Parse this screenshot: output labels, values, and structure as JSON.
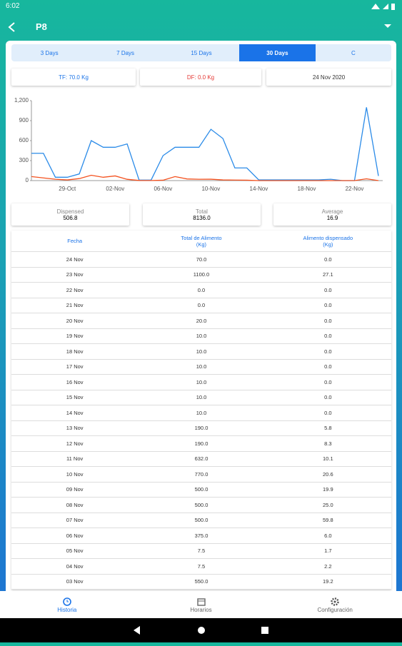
{
  "status_bar": {
    "time": "6:02"
  },
  "app_bar": {
    "title": "P8"
  },
  "tabs": [
    "3 Days",
    "7 Days",
    "15 Days",
    "30 Days",
    "C"
  ],
  "info": {
    "tf": "TF: 70.0 Kg",
    "df": "DF: 0.0 Kg",
    "date": "24 Nov 2020"
  },
  "chart_data": {
    "type": "line",
    "categories": [
      null,
      null,
      null,
      "29-Oct",
      null,
      null,
      null,
      "02-Nov",
      null,
      null,
      null,
      "06-Nov",
      null,
      null,
      null,
      "10-Nov",
      null,
      null,
      null,
      "14-Nov",
      null,
      null,
      null,
      "18-Nov",
      null,
      null,
      null,
      "22-Nov",
      null,
      null
    ],
    "series": [
      {
        "color": "#2b8be8",
        "values": [
          410,
          410,
          50,
          50,
          100,
          600,
          500,
          500,
          550,
          7.5,
          7.5,
          375,
          500,
          500,
          500,
          770,
          632,
          190,
          190,
          10,
          10,
          10,
          10,
          10,
          10,
          20,
          0,
          0,
          1100,
          70
        ]
      },
      {
        "color": "#f4511e",
        "values": [
          60,
          40,
          20,
          10,
          30,
          80,
          50,
          70,
          19.2,
          2.2,
          1.7,
          6.0,
          59.8,
          25.0,
          19.9,
          20.6,
          10.1,
          8.3,
          5.8,
          0,
          0,
          0,
          0,
          0,
          0,
          0,
          0,
          0,
          27.1,
          0
        ]
      }
    ],
    "ylim": [
      0,
      1200
    ],
    "yticks": [
      0,
      300,
      600,
      900,
      {
        "value": 1200,
        "label": "1,200"
      }
    ],
    "grid": false
  },
  "stats": [
    {
      "label": "Dispensed",
      "value": "506.8"
    },
    {
      "label": "Total",
      "value": "8136.0"
    },
    {
      "label": "Average",
      "value": "16.9"
    }
  ],
  "table": {
    "header": [
      "Fecha",
      "Total de Alimento\n(Kg)",
      "Alimento dispensado\n(Kg)"
    ],
    "rows": [
      [
        "24 Nov",
        "70.0",
        "0.0"
      ],
      [
        "23 Nov",
        "1100.0",
        "27.1"
      ],
      [
        "22 Nov",
        "0.0",
        "0.0"
      ],
      [
        "21 Nov",
        "0.0",
        "0.0"
      ],
      [
        "20 Nov",
        "20.0",
        "0.0"
      ],
      [
        "19 Nov",
        "10.0",
        "0.0"
      ],
      [
        "18 Nov",
        "10.0",
        "0.0"
      ],
      [
        "17 Nov",
        "10.0",
        "0.0"
      ],
      [
        "16 Nov",
        "10.0",
        "0.0"
      ],
      [
        "15 Nov",
        "10.0",
        "0.0"
      ],
      [
        "14 Nov",
        "10.0",
        "0.0"
      ],
      [
        "13 Nov",
        "190.0",
        "5.8"
      ],
      [
        "12 Nov",
        "190.0",
        "8.3"
      ],
      [
        "11 Nov",
        "632.0",
        "10.1"
      ],
      [
        "10 Nov",
        "770.0",
        "20.6"
      ],
      [
        "09 Nov",
        "500.0",
        "19.9"
      ],
      [
        "08 Nov",
        "500.0",
        "25.0"
      ],
      [
        "07 Nov",
        "500.0",
        "59.8"
      ],
      [
        "06 Nov",
        "375.0",
        "6.0"
      ],
      [
        "05 Nov",
        "7.5",
        "1.7"
      ],
      [
        "04 Nov",
        "7.5",
        "2.2"
      ],
      [
        "03 Nov",
        "550.0",
        "19.2"
      ]
    ]
  },
  "bottom_nav": [
    "Historia",
    "Horarios",
    "Configuración"
  ]
}
